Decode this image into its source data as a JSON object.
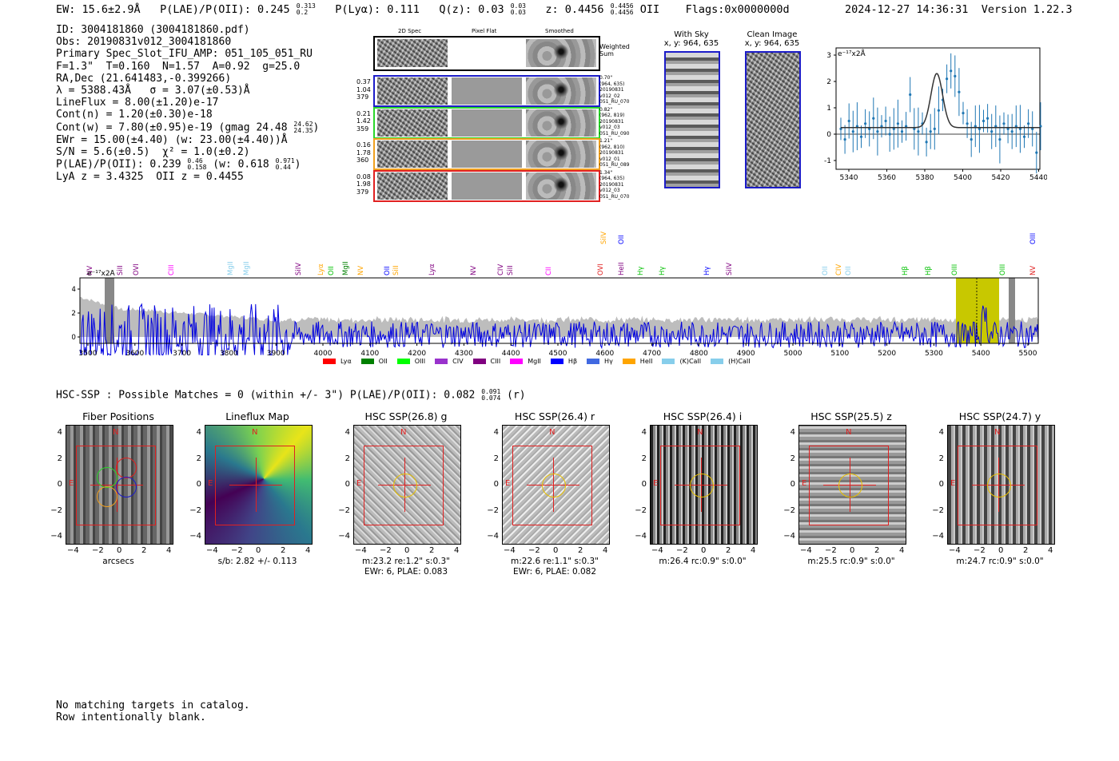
{
  "header": {
    "ew_label": "EW: 15.6±2.9Å",
    "plae_label": "P(LAE)/P(OII): 0.245",
    "plae_hi": "0.313",
    "plae_lo": "0.2",
    "plya_label": "P(Lyα): 0.111",
    "qz_label": "Q(z): 0.03",
    "qz_hi": "0.03",
    "qz_lo": "0.03",
    "z_label": "z: 0.4456",
    "z_hi": "0.4456",
    "z_lo": "0.4456",
    "z_line": "OII",
    "flags": "Flags:0x0000000d",
    "timestamp": "2024-12-27 14:36:31",
    "version": "Version 1.22.3"
  },
  "info": {
    "id": "ID: 3004181860 (3004181860.pdf)",
    "obs": "Obs: 20190831v012_3004181860",
    "spec": "Primary Spec_Slot_IFU_AMP: 051_105_051_RU",
    "fit": "F=1.3\"  T=0.160  N=1.57  A=0.92  g=25.0",
    "radec": "RA,Dec (21.641483,-0.399266)",
    "lambda": "λ = 5388.43Å   σ = 3.07(±0.53)Å",
    "lineflux": "LineFlux = 8.00(±1.20)e-17",
    "contn": "Cont(n) = 1.20(±0.30)e-18",
    "contw": "Cont(w) = 7.80(±0.95)e-19 (gmag 24.48",
    "contw_hi": "24.62",
    "contw_lo": "24.35",
    "contw_end": ")",
    "ewr": "EWr = 15.00(±4.40) (w: 23.00(±4.40))Å",
    "sn": "S/N = 5.6(±0.5)  χ² = 1.0(±0.2)",
    "plae": "P(LAE)/P(OII): 0.239",
    "plae_hi": "0.46",
    "plae_lo": "0.158",
    "plae_w": "(w: 0.618",
    "plae_w_hi": "0.971",
    "plae_w_lo": "0.44",
    "plae_w_end": ")",
    "lya": "LyA z = 3.4325  OII z = 0.4455"
  },
  "cutouts": {
    "col_2d": "2D Spec",
    "col_flat": "Pixel Flat",
    "col_smooth": "Smoothed",
    "weighted": [
      "Weighted",
      "Sum"
    ],
    "rows": [
      {
        "left": [
          "0.37",
          "1.04",
          "379"
        ],
        "right": [
          "0.70\"",
          "(964, 635)",
          "20190831",
          "v012_02",
          "051_RU_070"
        ],
        "color": "#1c1cc8"
      },
      {
        "left": [
          "0.21",
          "1.42",
          "359"
        ],
        "right": [
          "0.82\"",
          "(962, 819)",
          "20190831",
          "v012_03",
          "051_RU_090"
        ],
        "color": "#2bd62b"
      },
      {
        "left": [
          "0.16",
          "1.78",
          "360"
        ],
        "right": [
          "1.21\"",
          "(962, 810)",
          "20190831",
          "v012_01",
          "051_RU_089"
        ],
        "color": "#f0a020"
      },
      {
        "left": [
          "0.08",
          "1.98",
          "379"
        ],
        "right": [
          "1.34\"",
          "(964, 635)",
          "20190831",
          "v012_03",
          "051_RU_070"
        ],
        "color": "#e02020"
      }
    ],
    "with_sky_title": "With Sky",
    "with_sky_xy": "x, y: 964, 635",
    "clean_title": "Clean Image",
    "clean_xy": "x, y: 964, 635"
  },
  "zoom_chart": {
    "unit": "e⁻¹⁷x2Å",
    "x_ticks": [
      "5340",
      "5360",
      "5380",
      "5400",
      "5420",
      "5440"
    ],
    "y_ticks": [
      "3",
      "2",
      "1",
      "0",
      "-1"
    ]
  },
  "lines": [
    {
      "name": "NV",
      "color": "#800080"
    },
    {
      "name": "SiII",
      "color": "#800080"
    },
    {
      "name": "OVI",
      "color": "#800080"
    },
    {
      "name": "CIII",
      "color": "#ff00ff"
    },
    {
      "name": "MgII",
      "color": "#87ceeb"
    },
    {
      "name": "MgII",
      "color": "#87ceeb"
    },
    {
      "name": "SiIV",
      "color": "#800080"
    },
    {
      "name": "Lyα",
      "color": "#ffa500"
    },
    {
      "name": "OII",
      "color": "#00c000"
    },
    {
      "name": "MgII",
      "color": "#008000"
    },
    {
      "name": "NV",
      "color": "#ffa500"
    },
    {
      "name": "OII",
      "color": "#0000ff"
    },
    {
      "name": "SiII",
      "color": "#ffa500"
    },
    {
      "name": "Lyα",
      "color": "#800080"
    },
    {
      "name": "NV",
      "color": "#800080"
    },
    {
      "name": "CIV",
      "color": "#800080"
    },
    {
      "name": "SiII",
      "color": "#800080"
    },
    {
      "name": "CII",
      "color": "#ff00ff"
    },
    {
      "name": "OVI",
      "color": "#e02020"
    },
    {
      "name": "SiIV",
      "color": "#ffa500"
    },
    {
      "name": "HeII",
      "color": "#800080"
    },
    {
      "name": "OII",
      "color": "#0000ff"
    },
    {
      "name": "Hγ",
      "color": "#00c000"
    },
    {
      "name": "Hγ",
      "color": "#00c000"
    },
    {
      "name": "Hγ",
      "color": "#0000ff"
    },
    {
      "name": "SiIV",
      "color": "#800080"
    },
    {
      "name": "OII",
      "color": "#87ceeb"
    },
    {
      "name": "CIV",
      "color": "#ffa500"
    },
    {
      "name": "OII",
      "color": "#87ceeb"
    },
    {
      "name": "Hβ",
      "color": "#00c000"
    },
    {
      "name": "Hβ",
      "color": "#00c000"
    },
    {
      "name": "OIII",
      "color": "#00c000"
    },
    {
      "name": "OIII",
      "color": "#00c000"
    },
    {
      "name": "NV",
      "color": "#e02020"
    },
    {
      "name": "OIII",
      "color": "#0000ff"
    }
  ],
  "full_chart": {
    "unit": "e⁻¹⁷x2Å",
    "x_ticks": [
      "3500",
      "3600",
      "3700",
      "3800",
      "3900",
      "4000",
      "4100",
      "4200",
      "4300",
      "4400",
      "4500",
      "4600",
      "4700",
      "4800",
      "4900",
      "5000",
      "5100",
      "5200",
      "5300",
      "5400",
      "5500"
    ],
    "y_ticks": [
      "4",
      "2",
      "0"
    ],
    "legend": [
      {
        "label": "Lyα",
        "color": "#ff0000"
      },
      {
        "label": "OII",
        "color": "#008000"
      },
      {
        "label": "OIII",
        "color": "#00ff00"
      },
      {
        "label": "CIV",
        "color": "#9932cc"
      },
      {
        "label": "CIII",
        "color": "#800080"
      },
      {
        "label": "MgII",
        "color": "#ff00ff"
      },
      {
        "label": "Hβ",
        "color": "#0000ff"
      },
      {
        "label": "Hγ",
        "color": "#4169e1"
      },
      {
        "label": "HeII",
        "color": "#ffa500"
      },
      {
        "label": "(K)CaII",
        "color": "#87ceeb"
      },
      {
        "label": "(H)CaII",
        "color": "#87ceeb"
      }
    ]
  },
  "hsc": {
    "summary": "HSC-SSP : Possible Matches = 0 (within +/- 3\")  P(LAE)/P(OII): 0.082",
    "summary_hi": "0.091",
    "summary_lo": "0.074",
    "summary_end": "(r)",
    "panels": [
      {
        "title": "Fiber Positions",
        "cap1": "arcsecs",
        "cap2": ""
      },
      {
        "title": "Lineflux Map",
        "cap1": "s/b: 2.82 +/- 0.113",
        "cap2": ""
      },
      {
        "title": "HSC SSP(26.8) g",
        "cap1": "m:23.2  re:1.2\"  s:0.3\"",
        "cap2": "EWr: 6, PLAE: 0.083"
      },
      {
        "title": "HSC SSP(26.4) r",
        "cap1": "m:22.6  re:1.1\"  s:0.3\"",
        "cap2": "EWr: 6, PLAE: 0.082"
      },
      {
        "title": "HSC SSP(26.4) i",
        "cap1": "m:26.4  rc:0.9\"  s:0.0\"",
        "cap2": ""
      },
      {
        "title": "HSC SSP(25.5) z",
        "cap1": "m:25.5  rc:0.9\"  s:0.0\"",
        "cap2": ""
      },
      {
        "title": "HSC SSP(24.7) y",
        "cap1": "m:24.7  rc:0.9\"  s:0.0\"",
        "cap2": ""
      }
    ],
    "axis_ticks": [
      "4",
      "2",
      "0",
      "−2",
      "−4"
    ],
    "x_ticks": [
      "−4",
      "−2",
      "0",
      "2",
      "4"
    ],
    "north": "N",
    "east": "E"
  },
  "footer": {
    "line1": "No matching targets in catalog.",
    "line2": "Row intentionally blank."
  }
}
